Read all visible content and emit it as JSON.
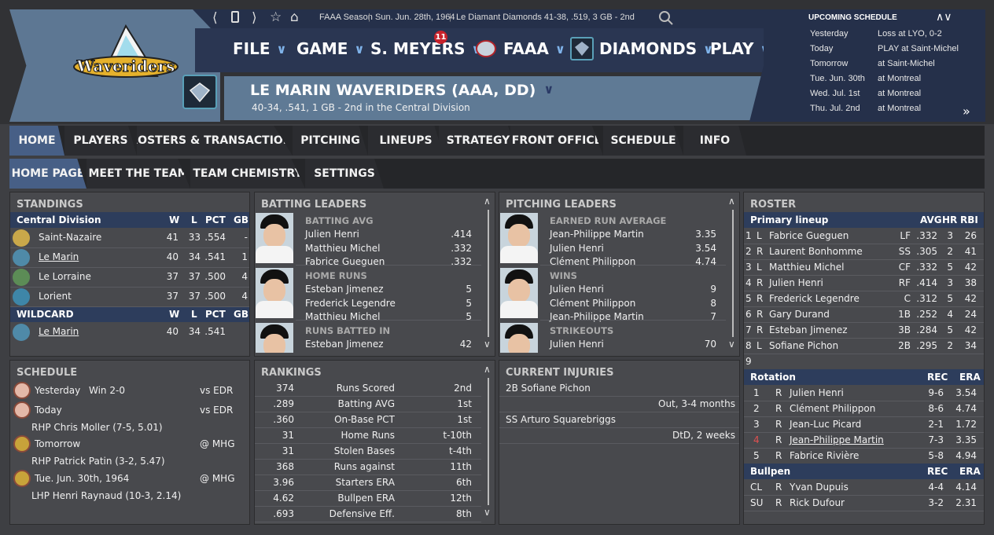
{
  "topbar": {
    "season": "FAAA Season",
    "date": "Sun. Jun. 28th, 1964",
    "opponent_line": "Le Diamant Diamonds   41-38, .519, 3 GB - 2nd"
  },
  "menu": {
    "file": "FILE",
    "game": "GAME",
    "manager": "S. MEYERS",
    "manager_badge": "11",
    "league": "FAAA",
    "team": "DIAMONDS",
    "play": "PLAY"
  },
  "team": {
    "name": "LE MARIN WAVERIDERS (AAA, DD)",
    "record": "40-34, .541, 1 GB - 2nd in the  Central Division",
    "logo_text": "Waveriders"
  },
  "upcoming": {
    "title": "UPCOMING SCHEDULE",
    "rows": [
      {
        "day": "Yesterday",
        "info": "Loss at LYO, 0-2"
      },
      {
        "day": "Today",
        "info": "PLAY at Saint-Michel"
      },
      {
        "day": "Tomorrow",
        "info": "at Saint-Michel"
      },
      {
        "day": "Tue. Jun. 30th",
        "info": "at Montreal"
      },
      {
        "day": "Wed. Jul. 1st",
        "info": "at Montreal"
      },
      {
        "day": "Thu. Jul. 2nd",
        "info": "at Montreal"
      }
    ]
  },
  "nav": {
    "tabs": [
      "HOME",
      "PLAYERS",
      "ROSTERS & TRANSACTIONS",
      "PITCHING",
      "LINEUPS",
      "STRATEGY",
      "FRONT OFFICE",
      "SCHEDULE",
      "INFO"
    ],
    "subtabs": [
      "HOME PAGE",
      "MEET THE TEAM",
      "TEAM CHEMISTRY",
      "SETTINGS"
    ]
  },
  "standings": {
    "title": "STANDINGS",
    "division": "Central Division",
    "wildcard": "WILDCARD",
    "cols": [
      "W",
      "L",
      "PCT",
      "GB"
    ],
    "rows": [
      {
        "team": "Saint-Nazaire",
        "w": "41",
        "l": "33",
        "pct": ".554",
        "gb": "-"
      },
      {
        "team": "Le Marin",
        "w": "40",
        "l": "34",
        "pct": ".541",
        "gb": "1"
      },
      {
        "team": "Le Lorraine",
        "w": "37",
        "l": "37",
        "pct": ".500",
        "gb": "4"
      },
      {
        "team": "Lorient",
        "w": "37",
        "l": "37",
        "pct": ".500",
        "gb": "4"
      }
    ],
    "wc_rows": [
      {
        "team": "Le Marin",
        "w": "40",
        "l": "34",
        "pct": ".541",
        "gb": ""
      }
    ]
  },
  "batting": {
    "title": "BATTING LEADERS",
    "groups": [
      {
        "cat": "BATTING AVG",
        "rows": [
          [
            "Julien Henri",
            ".414"
          ],
          [
            "Matthieu Michel",
            ".332"
          ],
          [
            "Fabrice Gueguen",
            ".332"
          ]
        ]
      },
      {
        "cat": "HOME RUNS",
        "rows": [
          [
            "Esteban Jimenez",
            "5"
          ],
          [
            "Frederick Legendre",
            "5"
          ],
          [
            "Matthieu Michel",
            "5"
          ]
        ]
      },
      {
        "cat": "RUNS BATTED IN",
        "rows": [
          [
            "Esteban Jimenez",
            "42"
          ]
        ]
      }
    ]
  },
  "pitching": {
    "title": "PITCHING LEADERS",
    "groups": [
      {
        "cat": "EARNED RUN AVERAGE",
        "rows": [
          [
            "Jean-Philippe Martin",
            "3.35"
          ],
          [
            "Julien Henri",
            "3.54"
          ],
          [
            "Clément Philippon",
            "4.74"
          ]
        ]
      },
      {
        "cat": "WINS",
        "rows": [
          [
            "Julien Henri",
            "9"
          ],
          [
            "Clément Philippon",
            "8"
          ],
          [
            "Jean-Philippe Martin",
            "7"
          ]
        ]
      },
      {
        "cat": "STRIKEOUTS",
        "rows": [
          [
            "Julien Henri",
            "70"
          ]
        ]
      }
    ]
  },
  "roster": {
    "title": "ROSTER",
    "lineup_hdr": "Primary lineup",
    "lineup_cols": [
      "AVG",
      "HR",
      "RBI"
    ],
    "lineup": [
      [
        "1",
        "L",
        "Fabrice Gueguen",
        "LF",
        ".332",
        "3",
        "26"
      ],
      [
        "2",
        "R",
        "Laurent Bonhomme",
        "SS",
        ".305",
        "2",
        "41"
      ],
      [
        "3",
        "L",
        "Matthieu Michel",
        "CF",
        ".332",
        "5",
        "42"
      ],
      [
        "4",
        "R",
        "Julien Henri",
        "RF",
        ".414",
        "3",
        "38"
      ],
      [
        "5",
        "R",
        "Frederick Legendre",
        "C",
        ".312",
        "5",
        "42"
      ],
      [
        "6",
        "R",
        "Gary Durand",
        "1B",
        ".252",
        "4",
        "24"
      ],
      [
        "7",
        "R",
        "Esteban Jimenez",
        "3B",
        ".284",
        "5",
        "42"
      ],
      [
        "8",
        "L",
        "Sofiane Pichon",
        "2B",
        ".295",
        "2",
        "34"
      ],
      [
        "9",
        "",
        "",
        "",
        "",
        "",
        ""
      ]
    ],
    "rotation_hdr": "Rotation",
    "rotation_cols": [
      "REC",
      "ERA"
    ],
    "rotation": [
      [
        "1",
        "R",
        "Julien Henri",
        "9-6",
        "3.54"
      ],
      [
        "2",
        "R",
        "Clément Philippon",
        "8-6",
        "4.74"
      ],
      [
        "3",
        "R",
        "Jean-Luc Picard",
        "2-1",
        "1.72"
      ],
      [
        "4",
        "R",
        "Jean-Philippe Martin",
        "7-3",
        "3.35"
      ],
      [
        "5",
        "R",
        "Fabrice Rivière",
        "5-8",
        "4.94"
      ]
    ],
    "bullpen_hdr": "Bullpen",
    "bullpen_cols": [
      "REC",
      "ERA"
    ],
    "bullpen": [
      [
        "CL",
        "R",
        "Yvan Dupuis",
        "4-4",
        "4.14"
      ],
      [
        "SU",
        "R",
        "Rick Dufour",
        "3-2",
        "2.31"
      ]
    ]
  },
  "schedule": {
    "title": "SCHEDULE",
    "items": [
      {
        "day": "Yesterday",
        "result": "Win 2-0",
        "opp": "vs EDR",
        "sub": ""
      },
      {
        "day": "Today",
        "result": "",
        "opp": "vs EDR",
        "sub": "RHP Chris Moller (7-5, 5.01)"
      },
      {
        "day": "Tomorrow",
        "result": "",
        "opp": "@ MHG",
        "sub": "RHP Patrick Patin (3-2, 5.47)"
      },
      {
        "day": "Tue. Jun. 30th, 1964",
        "result": "",
        "opp": "@ MHG",
        "sub": "LHP Henri Raynaud (10-3, 2.14)"
      }
    ]
  },
  "rankings": {
    "title": "RANKINGS",
    "rows": [
      [
        "374",
        "Runs Scored",
        "2nd"
      ],
      [
        ".289",
        "Batting AVG",
        "1st"
      ],
      [
        ".360",
        "On-Base PCT",
        "1st"
      ],
      [
        "31",
        "Home Runs",
        "t-10th"
      ],
      [
        "31",
        "Stolen Bases",
        "t-4th"
      ],
      [
        "368",
        "Runs against",
        "11th"
      ],
      [
        "3.96",
        "Starters ERA",
        "6th"
      ],
      [
        "4.62",
        "Bullpen ERA",
        "12th"
      ],
      [
        ".693",
        "Defensive Eff.",
        "8th"
      ]
    ]
  },
  "injuries": {
    "title": "CURRENT INJURIES",
    "rows": [
      {
        "player": "2B Sofiane Pichon",
        "status": "Out, 3-4 months"
      },
      {
        "player": "SS Arturo Squarebriggs",
        "status": "DtD, 2 weeks"
      }
    ]
  }
}
